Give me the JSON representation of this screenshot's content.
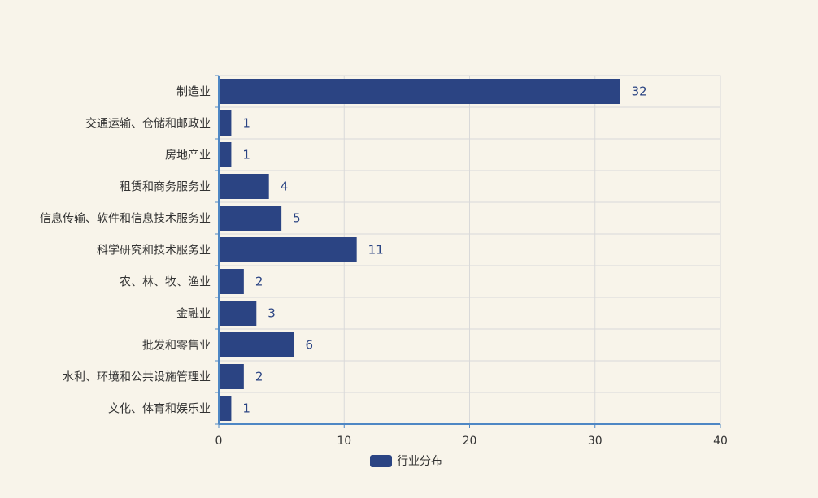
{
  "chart_data": {
    "type": "bar",
    "orientation": "horizontal",
    "categories": [
      "制造业",
      "交通运输、仓储和邮政业",
      "房地产业",
      "租赁和商务服务业",
      "信息传输、软件和信息技术服务业",
      "科学研究和技术服务业",
      "农、林、牧、渔业",
      "金融业",
      "批发和零售业",
      "水利、环境和公共设施管理业",
      "文化、体育和娱乐业"
    ],
    "series": [
      {
        "name": "行业分布",
        "values": [
          32,
          1,
          1,
          4,
          5,
          11,
          2,
          3,
          6,
          2,
          1
        ],
        "color": "#2b4483"
      }
    ],
    "xlim": [
      0,
      40
    ],
    "xticks": [
      0,
      10,
      20,
      30,
      40
    ],
    "grid": true,
    "legend_position": "bottom-center",
    "data_labels": true
  },
  "colors": {
    "background": "#f8f4ea",
    "bar": "#2b4483",
    "axis": "#4e87c4",
    "grid": "#d9d9d9",
    "data_label": "#2b4483"
  }
}
